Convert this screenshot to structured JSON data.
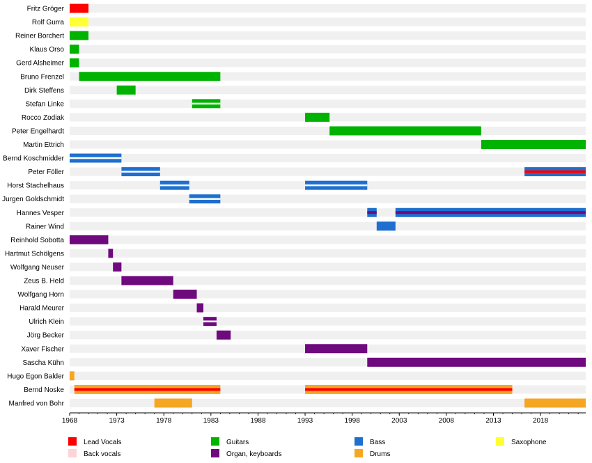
{
  "chart_data": {
    "type": "timeline",
    "x_range": [
      1968,
      2022.8
    ],
    "ticks": [
      1968,
      1973,
      1978,
      1983,
      1988,
      1993,
      1998,
      2003,
      2008,
      2013,
      2018
    ],
    "grid": false,
    "colors": {
      "Lead Vocals": "#ff0000",
      "Back vocals": "#ffd3d3",
      "Guitars": "#00b300",
      "Bass": "#1e6fcf",
      "Organ, keyboards": "#6e0a7d",
      "Drums": "#f5a623",
      "Saxophone": "#ffff33"
    },
    "legend": [
      {
        "label": "Lead Vocals",
        "role": "Lead Vocals"
      },
      {
        "label": "Guitars",
        "role": "Guitars"
      },
      {
        "label": "Bass",
        "role": "Bass"
      },
      {
        "label": "Saxophone",
        "role": "Saxophone"
      },
      {
        "label": "Back vocals",
        "role": "Back vocals"
      },
      {
        "label": "Organ, keyboards",
        "role": "Organ, keyboards"
      },
      {
        "label": "Drums",
        "role": "Drums"
      }
    ],
    "members": [
      {
        "name": "Fritz Gröger",
        "spans": [
          {
            "start": 1968,
            "end": 1970,
            "roles": [
              "Lead Vocals"
            ]
          }
        ]
      },
      {
        "name": "Rolf Gurra",
        "spans": [
          {
            "start": 1968,
            "end": 1970,
            "roles": [
              "Saxophone"
            ]
          }
        ]
      },
      {
        "name": "Reiner Borchert",
        "spans": [
          {
            "start": 1968,
            "end": 1970,
            "roles": [
              "Guitars"
            ]
          }
        ]
      },
      {
        "name": "Klaus Orso",
        "spans": [
          {
            "start": 1968,
            "end": 1969,
            "roles": [
              "Guitars"
            ]
          }
        ]
      },
      {
        "name": "Gerd Alsheimer",
        "spans": [
          {
            "start": 1968,
            "end": 1969,
            "roles": [
              "Guitars"
            ]
          }
        ]
      },
      {
        "name": "Bruno Frenzel",
        "spans": [
          {
            "start": 1969,
            "end": 1984,
            "roles": [
              "Guitars"
            ]
          }
        ]
      },
      {
        "name": "Dirk Steffens",
        "spans": [
          {
            "start": 1973,
            "end": 1975,
            "roles": [
              "Guitars"
            ]
          }
        ]
      },
      {
        "name": "Stefan Linke",
        "spans": [
          {
            "start": 1981,
            "end": 1984,
            "roles": [
              "Guitars",
              "Guitars"
            ]
          }
        ]
      },
      {
        "name": "Rocco Zodiak",
        "spans": [
          {
            "start": 1993,
            "end": 1995.6,
            "roles": [
              "Guitars"
            ]
          }
        ]
      },
      {
        "name": "Peter Engelhardt",
        "spans": [
          {
            "start": 1995.6,
            "end": 2011.7,
            "roles": [
              "Guitars"
            ]
          }
        ]
      },
      {
        "name": "Martin Ettrich",
        "spans": [
          {
            "start": 2011.7,
            "end": 2022.8,
            "roles": [
              "Guitars"
            ]
          }
        ]
      },
      {
        "name": "Bernd Koschmidder",
        "spans": [
          {
            "start": 1968,
            "end": 1973.5,
            "roles": [
              "Bass",
              "Bass"
            ]
          }
        ]
      },
      {
        "name": "Peter Föller",
        "spans": [
          {
            "start": 1973.5,
            "end": 1977.6,
            "roles": [
              "Bass",
              "Bass"
            ]
          },
          {
            "start": 2016.3,
            "end": 2022.8,
            "roles": [
              "Bass",
              "Lead Vocals"
            ]
          }
        ]
      },
      {
        "name": "Horst Stachelhaus",
        "spans": [
          {
            "start": 1977.6,
            "end": 1980.7,
            "roles": [
              "Bass",
              "Bass"
            ]
          },
          {
            "start": 1993,
            "end": 1999.6,
            "roles": [
              "Bass",
              "Bass"
            ]
          }
        ]
      },
      {
        "name": "Jurgen Goldschmidt",
        "spans": [
          {
            "start": 1980.7,
            "end": 1984,
            "roles": [
              "Bass",
              "Bass"
            ]
          }
        ]
      },
      {
        "name": "Hannes Vesper",
        "spans": [
          {
            "start": 1999.6,
            "end": 2000.6,
            "roles": [
              "Bass",
              "Organ, keyboards"
            ]
          },
          {
            "start": 2002.6,
            "end": 2022.8,
            "roles": [
              "Bass",
              "Organ, keyboards"
            ]
          }
        ]
      },
      {
        "name": "Rainer Wind",
        "spans": [
          {
            "start": 2000.6,
            "end": 2002.6,
            "roles": [
              "Bass"
            ]
          }
        ]
      },
      {
        "name": "Reinhold Sobotta",
        "spans": [
          {
            "start": 1968,
            "end": 1972.1,
            "roles": [
              "Organ, keyboards"
            ]
          }
        ]
      },
      {
        "name": "Hartmut Schölgens",
        "spans": [
          {
            "start": 1972.1,
            "end": 1972.6,
            "roles": [
              "Organ, keyboards"
            ]
          }
        ]
      },
      {
        "name": "Wolfgang Neuser",
        "spans": [
          {
            "start": 1972.6,
            "end": 1973.5,
            "roles": [
              "Organ, keyboards"
            ]
          }
        ]
      },
      {
        "name": "Zeus B. Held",
        "spans": [
          {
            "start": 1973.5,
            "end": 1979,
            "roles": [
              "Organ, keyboards"
            ]
          }
        ]
      },
      {
        "name": "Wolfgang Horn",
        "spans": [
          {
            "start": 1979,
            "end": 1981.5,
            "roles": [
              "Organ, keyboards"
            ]
          }
        ]
      },
      {
        "name": "Harald Meurer",
        "spans": [
          {
            "start": 1981.5,
            "end": 1982.2,
            "roles": [
              "Organ, keyboards"
            ]
          }
        ]
      },
      {
        "name": "Ulrich Klein",
        "spans": [
          {
            "start": 1982.2,
            "end": 1983.6,
            "roles": [
              "Organ, keyboards",
              "Organ, keyboards"
            ]
          }
        ]
      },
      {
        "name": "Jörg Becker",
        "spans": [
          {
            "start": 1983.6,
            "end": 1985.1,
            "roles": [
              "Organ, keyboards"
            ]
          }
        ]
      },
      {
        "name": "Xaver Fischer",
        "spans": [
          {
            "start": 1993,
            "end": 1999.6,
            "roles": [
              "Organ, keyboards"
            ]
          }
        ]
      },
      {
        "name": "Sascha Kühn",
        "spans": [
          {
            "start": 1999.6,
            "end": 2022.8,
            "roles": [
              "Organ, keyboards"
            ]
          }
        ]
      },
      {
        "name": "Hugo Egon Balder",
        "spans": [
          {
            "start": 1968,
            "end": 1968.5,
            "roles": [
              "Drums"
            ]
          }
        ]
      },
      {
        "name": "Bernd Noske",
        "spans": [
          {
            "start": 1968.5,
            "end": 1984,
            "roles": [
              "Drums",
              "Lead Vocals"
            ]
          },
          {
            "start": 1993,
            "end": 2015,
            "roles": [
              "Drums",
              "Lead Vocals"
            ]
          }
        ]
      },
      {
        "name": "Manfred von Bohr",
        "spans": [
          {
            "start": 1977,
            "end": 1981,
            "roles": [
              "Drums"
            ]
          },
          {
            "start": 2016.3,
            "end": 2022.8,
            "roles": [
              "Drums"
            ]
          }
        ]
      }
    ]
  }
}
